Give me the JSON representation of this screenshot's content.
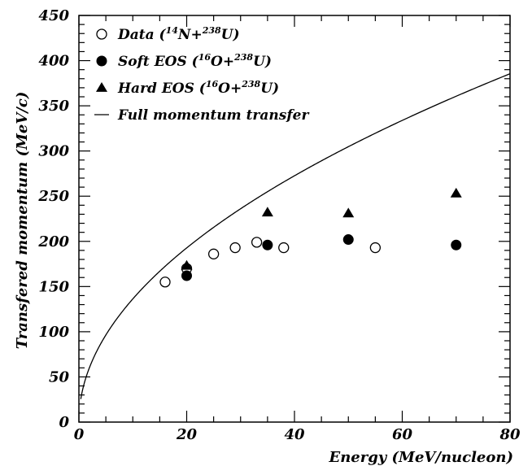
{
  "chart_data": {
    "type": "scatter",
    "xlabel": "Energy (MeV/nucleon)",
    "ylabel": "Transfered momentum (MeV/c)",
    "xlim": [
      0,
      80
    ],
    "ylim": [
      0,
      450
    ],
    "x_ticks": [
      0,
      20,
      40,
      60,
      80
    ],
    "y_ticks": [
      0,
      50,
      100,
      150,
      200,
      250,
      300,
      350,
      400,
      450
    ],
    "grid": false,
    "legend_position": "top-left",
    "series": [
      {
        "name": "Data (14N+238U)",
        "marker": "open-circle",
        "x": [
          16,
          20,
          25,
          29,
          33,
          38,
          55
        ],
        "y": [
          155,
          170,
          186,
          193,
          199,
          193,
          193
        ]
      },
      {
        "name": "Soft EOS (16O+238U)",
        "marker": "filled-circle",
        "x": [
          20,
          35,
          50,
          70
        ],
        "y": [
          162,
          196,
          202,
          196
        ]
      },
      {
        "name": "Hard EOS (16O+238U)",
        "marker": "filled-triangle",
        "x": [
          20,
          35,
          50,
          70
        ],
        "y": [
          173,
          232,
          231,
          253
        ]
      },
      {
        "name": "Full momentum transfer",
        "marker": "line",
        "curve": "sqrt",
        "coefficient": 43.1
      }
    ],
    "legend": [
      {
        "pre": "Data  (",
        "sup1": "14",
        "mid": "N+",
        "sup2": "238",
        "post": "U)"
      },
      {
        "pre": "Soft EOS (",
        "sup1": "16",
        "mid": "O+",
        "sup2": "238",
        "post": "U)"
      },
      {
        "pre": "Hard EOS (",
        "sup1": "16",
        "mid": "O+",
        "sup2": "238",
        "post": "U)"
      },
      {
        "pre": "Full momentum transfer",
        "sup1": "",
        "mid": "",
        "sup2": "",
        "post": ""
      }
    ]
  }
}
